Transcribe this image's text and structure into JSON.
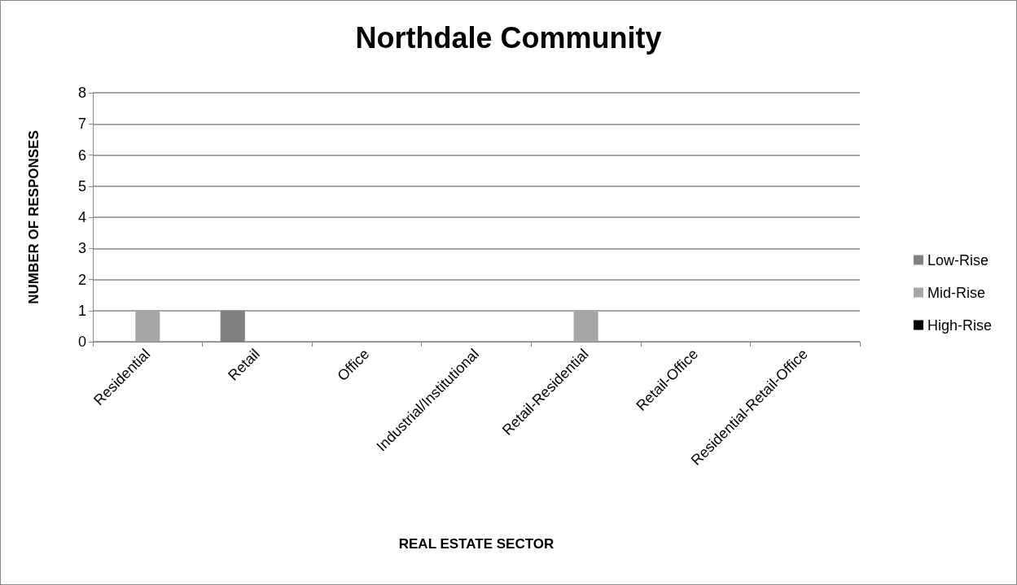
{
  "chart_data": {
    "type": "bar",
    "title": "Northdale Community",
    "xlabel": "REAL ESTATE SECTOR",
    "ylabel": "NUMBER OF RESPONSES",
    "categories": [
      "Residential",
      "Retail",
      "Office",
      "Industrial/Institutional",
      "Retail-Residential",
      "Retail-Office",
      "Residential-Retail-Office"
    ],
    "series": [
      {
        "name": "Low-Rise",
        "color": "#808080",
        "values": [
          0,
          1,
          0,
          0,
          0,
          0,
          0
        ]
      },
      {
        "name": "Mid-Rise",
        "color": "#a6a6a6",
        "values": [
          1,
          0,
          0,
          0,
          1,
          0,
          0
        ]
      },
      {
        "name": "High-Rise",
        "color": "#000000",
        "values": [
          0,
          0,
          0,
          0,
          0,
          0,
          0
        ]
      }
    ],
    "ylim": [
      0,
      8
    ],
    "yticks": [
      0,
      1,
      2,
      3,
      4,
      5,
      6,
      7,
      8
    ],
    "grid": "y",
    "legend": "right"
  }
}
